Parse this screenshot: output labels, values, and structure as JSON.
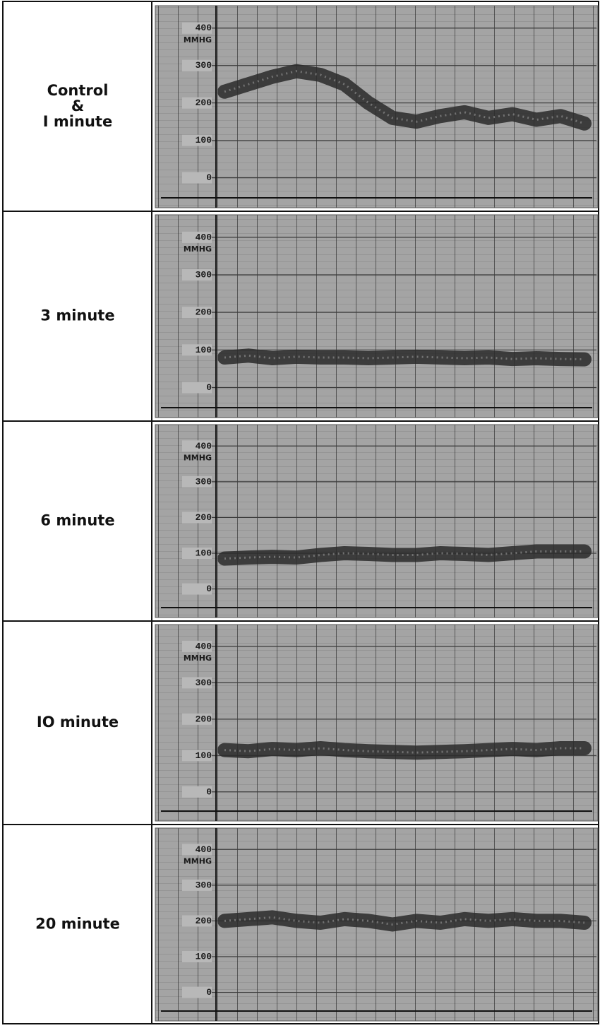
{
  "chart_data": [
    {
      "type": "line",
      "title": [
        "Control",
        "&",
        "I minute"
      ],
      "y_label": "MMHG",
      "ylim": [
        -80,
        460
      ],
      "yticks": [
        0,
        100,
        200,
        300,
        400
      ],
      "categories": [
        null,
        null,
        null,
        null,
        null,
        null,
        null,
        null,
        null,
        null,
        null,
        null,
        null,
        null,
        null,
        null
      ],
      "series": [
        {
          "color": "#2a2a2a",
          "values": [
            230,
            250,
            270,
            285,
            275,
            250,
            200,
            160,
            150,
            165,
            175,
            160,
            170,
            155,
            165,
            145
          ]
        }
      ]
    },
    {
      "type": "line",
      "title": [
        "3 minute"
      ],
      "y_label": "MMHG",
      "ylim": [
        -80,
        460
      ],
      "yticks": [
        0,
        100,
        200,
        300,
        400
      ],
      "categories": [
        null,
        null,
        null,
        null,
        null,
        null,
        null,
        null,
        null,
        null,
        null,
        null,
        null,
        null,
        null,
        null
      ],
      "series": [
        {
          "color": "#2a2a2a",
          "values": [
            80,
            85,
            78,
            82,
            80,
            80,
            78,
            80,
            82,
            80,
            78,
            80,
            76,
            78,
            76,
            75
          ]
        }
      ]
    },
    {
      "type": "line",
      "title": [
        "6 minute"
      ],
      "y_label": "MMHG",
      "ylim": [
        -80,
        460
      ],
      "yticks": [
        0,
        100,
        200,
        300,
        400
      ],
      "categories": [
        null,
        null,
        null,
        null,
        null,
        null,
        null,
        null,
        null,
        null,
        null,
        null,
        null,
        null,
        null,
        null
      ],
      "series": [
        {
          "color": "#2a2a2a",
          "values": [
            85,
            88,
            90,
            88,
            95,
            100,
            98,
            95,
            95,
            100,
            98,
            95,
            100,
            105,
            105,
            105
          ]
        }
      ]
    },
    {
      "type": "line",
      "title": [
        "IO minute"
      ],
      "y_label": "MMHG",
      "ylim": [
        -80,
        460
      ],
      "yticks": [
        0,
        100,
        200,
        300,
        400
      ],
      "categories": [
        null,
        null,
        null,
        null,
        null,
        null,
        null,
        null,
        null,
        null,
        null,
        null,
        null,
        null,
        null,
        null
      ],
      "series": [
        {
          "color": "#2a2a2a",
          "values": [
            115,
            112,
            118,
            115,
            120,
            115,
            112,
            110,
            108,
            110,
            112,
            115,
            118,
            115,
            120,
            120
          ]
        }
      ]
    },
    {
      "type": "line",
      "title": [
        "20 minute"
      ],
      "y_label": "MMHG",
      "ylim": [
        -80,
        460
      ],
      "yticks": [
        0,
        100,
        200,
        300,
        400
      ],
      "categories": [
        null,
        null,
        null,
        null,
        null,
        null,
        null,
        null,
        null,
        null,
        null,
        null,
        null,
        null,
        null,
        null
      ],
      "series": [
        {
          "color": "#2a2a2a",
          "values": [
            200,
            205,
            210,
            200,
            195,
            205,
            200,
            190,
            200,
            195,
            205,
            200,
            205,
            200,
            200,
            195
          ]
        }
      ]
    }
  ]
}
